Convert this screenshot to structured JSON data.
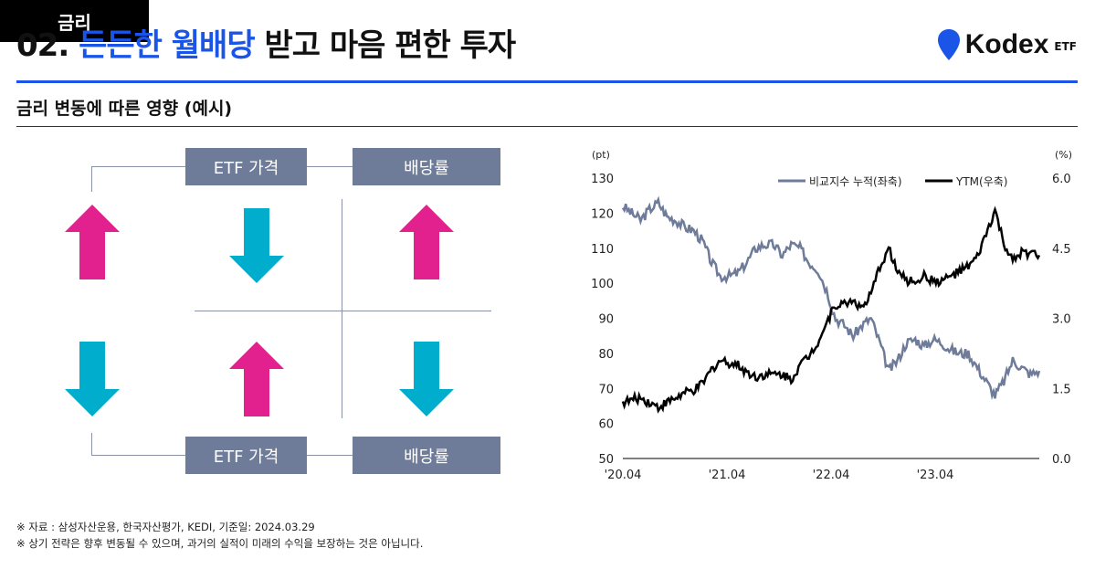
{
  "header": {
    "title_prefix": "02.",
    "title_highlight": "든든한 월배당",
    "title_rest": "받고 마음 편한 투자",
    "logo": "Kodex",
    "logo_suffix": "ETF"
  },
  "subtitle": "금리 변동에 따른 영향 (예시)",
  "diagram": {
    "rate_label": "금리",
    "etf_price": "ETF 가격",
    "dividend_rate": "배당률",
    "scenario_up": {
      "rate": "up",
      "etf_price": "down",
      "dividend": "up"
    },
    "scenario_down": {
      "rate": "down",
      "etf_price": "up",
      "dividend": "down"
    },
    "colors": {
      "up": "#e3218e",
      "down": "#00adcc"
    }
  },
  "notes": [
    "※ 자료 : 삼성자산운용, 한국자산평가, KEDI, 기준일: 2024.03.29",
    "※ 상기 전략은 향후 변동될 수 있으며, 과거의 실적이 미래의 수익을 보장하는 것은 아닙니다."
  ],
  "chart_data": {
    "type": "line",
    "left_unit": "(pt)",
    "right_unit": "(%)",
    "ylim_left": [
      50,
      130
    ],
    "yticks_left": [
      "50",
      "60",
      "70",
      "80",
      "90",
      "100",
      "110",
      "120",
      "130"
    ],
    "ylim_right": [
      0,
      6
    ],
    "yticks_right": [
      "0.0",
      "1.5",
      "3.0",
      "4.5",
      "6.0"
    ],
    "xticks": [
      "'20.04",
      "'21.04",
      "'22.04",
      "'23.04"
    ],
    "x_start": "2020.04",
    "x_end": "2024.03",
    "series": [
      {
        "name": "비교지수 누적(좌축)",
        "axis": "left",
        "color": "#6e7b99",
        "values": [
          122,
          120,
          118,
          121,
          123,
          119,
          118,
          116,
          115,
          112,
          106,
          102,
          102,
          103,
          106,
          110,
          111,
          111,
          108,
          111,
          110,
          106,
          104,
          98,
          90,
          88,
          85,
          88,
          90,
          83,
          75,
          78,
          83,
          84,
          82,
          84,
          83,
          81,
          80,
          80,
          76,
          72,
          68,
          72,
          78,
          76,
          74,
          75
        ]
      },
      {
        "name": "YTM(우축)",
        "axis": "right",
        "color": "#000000",
        "values": [
          1.2,
          1.25,
          1.3,
          1.2,
          1.1,
          1.2,
          1.3,
          1.4,
          1.45,
          1.6,
          1.9,
          2.1,
          2.05,
          2.0,
          1.85,
          1.75,
          1.8,
          1.8,
          1.8,
          1.7,
          2.0,
          2.2,
          2.5,
          2.9,
          3.3,
          3.3,
          3.4,
          3.2,
          3.5,
          4.1,
          4.5,
          4.0,
          3.8,
          3.8,
          3.9,
          3.8,
          3.8,
          3.9,
          4.0,
          4.1,
          4.3,
          4.8,
          5.3,
          4.6,
          4.2,
          4.4,
          4.4,
          4.35
        ]
      }
    ]
  }
}
